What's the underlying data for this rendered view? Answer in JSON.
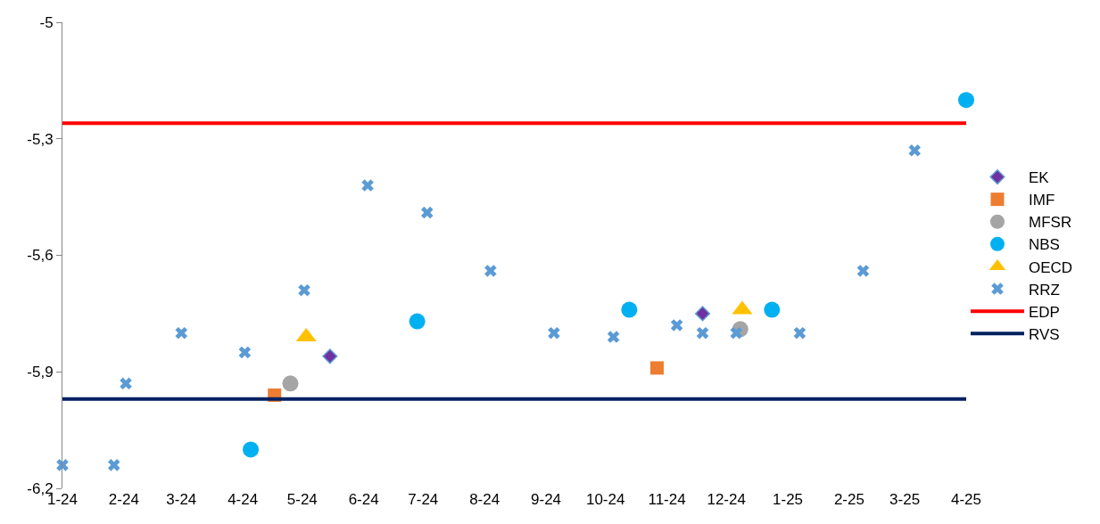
{
  "chart_data": {
    "type": "scatter",
    "xlim": [
      "2024-01-01",
      "2025-04-01"
    ],
    "ylim": [
      -6.2,
      -5
    ],
    "xticks": [
      {
        "value": "2024-01-01",
        "label": "1-24"
      },
      {
        "value": "2024-02-01",
        "label": "2-24"
      },
      {
        "value": "2024-03-01",
        "label": "3-24"
      },
      {
        "value": "2024-04-01",
        "label": "4-24"
      },
      {
        "value": "2024-05-01",
        "label": "5-24"
      },
      {
        "value": "2024-06-01",
        "label": "6-24"
      },
      {
        "value": "2024-07-01",
        "label": "7-24"
      },
      {
        "value": "2024-08-01",
        "label": "8-24"
      },
      {
        "value": "2024-09-01",
        "label": "9-24"
      },
      {
        "value": "2024-10-01",
        "label": "10-24"
      },
      {
        "value": "2024-11-01",
        "label": "11-24"
      },
      {
        "value": "2024-12-01",
        "label": "12-24"
      },
      {
        "value": "2025-01-01",
        "label": "1-25"
      },
      {
        "value": "2025-02-01",
        "label": "2-25"
      },
      {
        "value": "2025-03-01",
        "label": "3-25"
      },
      {
        "value": "2025-04-01",
        "label": "4-25"
      }
    ],
    "yticks": [
      {
        "value": -5,
        "label": "-5"
      },
      {
        "value": -5.3,
        "label": "-5,3"
      },
      {
        "value": -5.6,
        "label": "-5,6"
      },
      {
        "value": -5.9,
        "label": "-5,9"
      },
      {
        "value": -6.2,
        "label": "-6,2"
      }
    ],
    "grid": false,
    "legend": "right",
    "series": [
      {
        "name": "EK",
        "color": "#7030a0",
        "marker": "diamond",
        "x": [
          "2024-05-15",
          "2024-11-19"
        ],
        "values": [
          -5.86,
          -5.75
        ]
      },
      {
        "name": "IMF",
        "color": "#ed7d31",
        "marker": "square",
        "x": [
          "2024-04-17",
          "2024-10-27"
        ],
        "values": [
          -5.96,
          -5.89
        ]
      },
      {
        "name": "MFSR",
        "color": "#a5a5a5",
        "marker": "circle",
        "x": [
          "2024-04-25",
          "2024-12-08"
        ],
        "values": [
          -5.93,
          -5.79
        ]
      },
      {
        "name": "NBS",
        "color": "#00b0f0",
        "marker": "circle",
        "x": [
          "2024-04-05",
          "2024-06-28",
          "2024-10-13",
          "2024-12-24",
          "2025-04-01"
        ],
        "values": [
          -6.1,
          -5.77,
          -5.74,
          -5.74,
          -5.2
        ]
      },
      {
        "name": "OECD",
        "color": "#ffc000",
        "marker": "triangle",
        "x": [
          "2024-05-03",
          "2024-12-09"
        ],
        "values": [
          -5.81,
          -5.74
        ]
      },
      {
        "name": "RRZ",
        "color": "#5b9bd5",
        "marker": "cross",
        "x": [
          "2024-01-01",
          "2024-01-27",
          "2024-02-02",
          "2024-03-01",
          "2024-04-02",
          "2024-05-02",
          "2024-06-03",
          "2024-07-03",
          "2024-08-04",
          "2024-09-05",
          "2024-10-05",
          "2024-11-06",
          "2024-11-19",
          "2024-12-06",
          "2025-01-07",
          "2025-02-08",
          "2025-03-06"
        ],
        "values": [
          -6.14,
          -6.14,
          -5.93,
          -5.8,
          -5.85,
          -5.69,
          -5.42,
          -5.49,
          -5.64,
          -5.8,
          -5.81,
          -5.78,
          -5.8,
          -5.8,
          -5.8,
          -5.64,
          -5.33
        ]
      },
      {
        "name": "EDP",
        "type": "line",
        "color": "#ff0000",
        "marker": "none",
        "line_style": "solid",
        "x": [
          "2024-01-01",
          "2025-04-01"
        ],
        "values": [
          -5.26,
          -5.26
        ]
      },
      {
        "name": "RVS",
        "type": "line",
        "color": "#002060",
        "marker": "none",
        "line_style": "solid",
        "x": [
          "2024-01-01",
          "2025-04-01"
        ],
        "values": [
          -5.97,
          -5.97
        ]
      }
    ]
  }
}
